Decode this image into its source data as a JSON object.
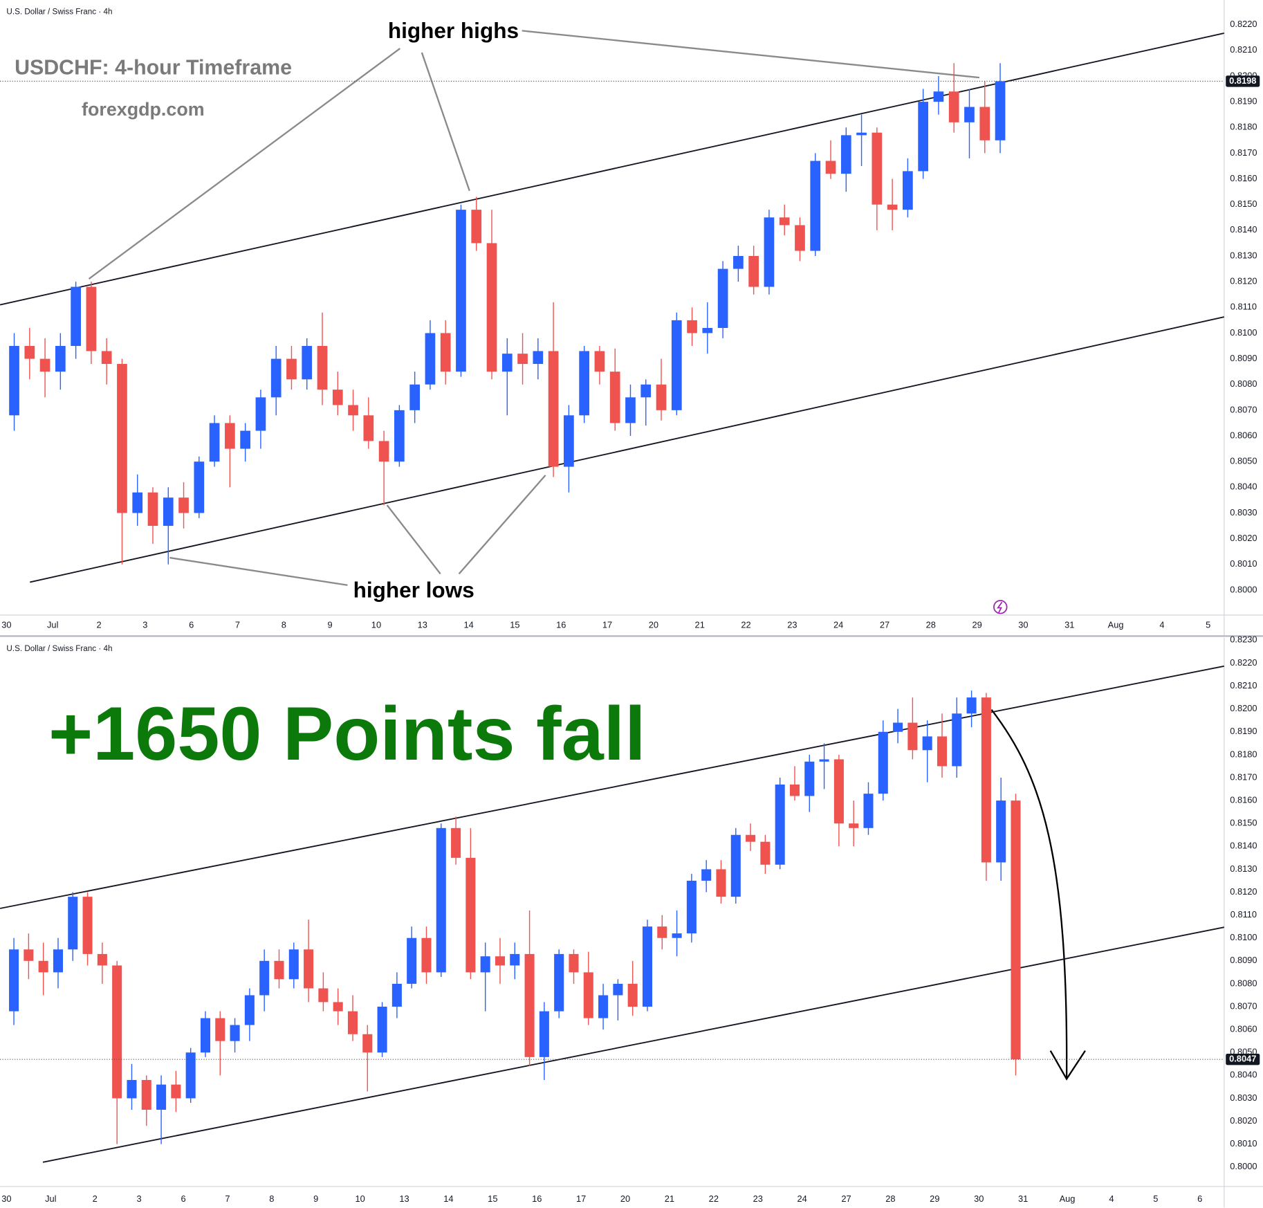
{
  "chart_data": [
    {
      "type": "candlestick",
      "title": "U.S. Dollar / Swiss Franc · 4h",
      "heading": "USDCHF: 4-hour Timeframe",
      "website": "forexgdp.com",
      "annotations": [
        "higher highs",
        "higher lows"
      ],
      "up_color": "#2962ff",
      "down_color": "#ef5350",
      "open": [
        0.8068,
        0.8095,
        0.809,
        0.8085,
        0.8095,
        0.8118,
        0.8093,
        0.8088,
        0.803,
        0.8038,
        0.8025,
        0.8036,
        0.803,
        0.805,
        0.8065,
        0.8055,
        0.8062,
        0.8075,
        0.809,
        0.8082,
        0.8095,
        0.8078,
        0.8072,
        0.8068,
        0.8058,
        0.805,
        0.807,
        0.808,
        0.81,
        0.8085,
        0.8148,
        0.8135,
        0.8085,
        0.8092,
        0.8088,
        0.8093,
        0.8048,
        0.8068,
        0.8093,
        0.8085,
        0.8065,
        0.8075,
        0.808,
        0.807,
        0.8105,
        0.81,
        0.8102,
        0.8125,
        0.813,
        0.8118,
        0.8145,
        0.8142,
        0.8132,
        0.8167,
        0.8162,
        0.8177,
        0.8178,
        0.815,
        0.8148,
        0.8163,
        0.819,
        0.8194,
        0.8182,
        0.8188,
        0.8175
      ],
      "high": [
        0.81,
        0.8102,
        0.8098,
        0.81,
        0.812,
        0.812,
        0.8098,
        0.809,
        0.8045,
        0.804,
        0.804,
        0.8042,
        0.8052,
        0.8068,
        0.8068,
        0.8065,
        0.8078,
        0.8095,
        0.8095,
        0.8098,
        0.8108,
        0.8085,
        0.8078,
        0.8075,
        0.8062,
        0.8072,
        0.8085,
        0.8105,
        0.8105,
        0.815,
        0.8153,
        0.8148,
        0.8098,
        0.81,
        0.8098,
        0.8112,
        0.8072,
        0.8095,
        0.8095,
        0.8094,
        0.808,
        0.8082,
        0.809,
        0.8108,
        0.811,
        0.8112,
        0.8128,
        0.8134,
        0.8134,
        0.8148,
        0.815,
        0.8145,
        0.817,
        0.8175,
        0.818,
        0.8185,
        0.818,
        0.816,
        0.8168,
        0.8195,
        0.82,
        0.8205,
        0.8195,
        0.8198,
        0.8205
      ],
      "low": [
        0.8062,
        0.8082,
        0.8075,
        0.8078,
        0.809,
        0.8088,
        0.808,
        0.801,
        0.8025,
        0.8018,
        0.801,
        0.8024,
        0.8028,
        0.8048,
        0.804,
        0.805,
        0.8055,
        0.8068,
        0.8078,
        0.8078,
        0.8072,
        0.8068,
        0.8062,
        0.8055,
        0.8033,
        0.8048,
        0.8065,
        0.8078,
        0.808,
        0.8083,
        0.8132,
        0.8082,
        0.8068,
        0.808,
        0.8082,
        0.8044,
        0.8038,
        0.8065,
        0.808,
        0.8062,
        0.806,
        0.8064,
        0.8066,
        0.8068,
        0.8095,
        0.8092,
        0.8098,
        0.812,
        0.8115,
        0.8115,
        0.8138,
        0.8128,
        0.813,
        0.816,
        0.8155,
        0.8165,
        0.814,
        0.814,
        0.8145,
        0.816,
        0.8185,
        0.8178,
        0.8168,
        0.817,
        0.817
      ],
      "close": [
        0.8095,
        0.809,
        0.8085,
        0.8095,
        0.8118,
        0.8093,
        0.8088,
        0.803,
        0.8038,
        0.8025,
        0.8036,
        0.803,
        0.805,
        0.8065,
        0.8055,
        0.8062,
        0.8075,
        0.809,
        0.8082,
        0.8095,
        0.8078,
        0.8072,
        0.8068,
        0.8058,
        0.805,
        0.807,
        0.808,
        0.81,
        0.8085,
        0.8148,
        0.8135,
        0.8085,
        0.8092,
        0.8088,
        0.8093,
        0.8048,
        0.8068,
        0.8093,
        0.8085,
        0.8065,
        0.8075,
        0.808,
        0.807,
        0.8105,
        0.81,
        0.8102,
        0.8125,
        0.813,
        0.8118,
        0.8145,
        0.8142,
        0.8132,
        0.8167,
        0.8162,
        0.8177,
        0.8178,
        0.815,
        0.8148,
        0.8163,
        0.819,
        0.8194,
        0.8182,
        0.8188,
        0.8175,
        0.8198
      ],
      "last_price": {
        "value": 0.8198,
        "label": "0.8198"
      },
      "trendlines": [
        {
          "x": [
            -0.42,
            79.04
          ],
          "y": [
            0.8111,
            0.82167
          ]
        },
        {
          "x": [
            1.52,
            79.04
          ],
          "y": [
            0.80031,
            0.81063
          ]
        }
      ],
      "xlim": [
        -0.42,
        79.04
      ],
      "ylim": [
        0.79906,
        0.82296
      ],
      "xticks": [
        {
          "value": 0,
          "label": "30"
        },
        {
          "value": 3,
          "label": "Jul"
        },
        {
          "value": 6,
          "label": "2"
        },
        {
          "value": 9,
          "label": "3"
        },
        {
          "value": 12,
          "label": "6"
        },
        {
          "value": 15,
          "label": "7"
        },
        {
          "value": 18,
          "label": "8"
        },
        {
          "value": 21,
          "label": "9"
        },
        {
          "value": 24,
          "label": "10"
        },
        {
          "value": 27,
          "label": "13"
        },
        {
          "value": 30,
          "label": "14"
        },
        {
          "value": 33,
          "label": "15"
        },
        {
          "value": 36,
          "label": "16"
        },
        {
          "value": 39,
          "label": "17"
        },
        {
          "value": 42,
          "label": "20"
        },
        {
          "value": 45,
          "label": "21"
        },
        {
          "value": 48,
          "label": "22"
        },
        {
          "value": 51,
          "label": "23"
        },
        {
          "value": 54,
          "label": "24"
        },
        {
          "value": 57,
          "label": "27"
        },
        {
          "value": 60,
          "label": "28"
        },
        {
          "value": 63,
          "label": "29"
        },
        {
          "value": 66,
          "label": "30"
        },
        {
          "value": 69,
          "label": "31"
        },
        {
          "value": 72,
          "label": "Aug"
        },
        {
          "value": 75,
          "label": "4"
        },
        {
          "value": 78,
          "label": "5"
        }
      ],
      "yticks": [
        {
          "value": 0.8,
          "label": "0.8000"
        },
        {
          "value": 0.801,
          "label": "0.8010"
        },
        {
          "value": 0.802,
          "label": "0.8020"
        },
        {
          "value": 0.803,
          "label": "0.8030"
        },
        {
          "value": 0.804,
          "label": "0.8040"
        },
        {
          "value": 0.805,
          "label": "0.8050"
        },
        {
          "value": 0.806,
          "label": "0.8060"
        },
        {
          "value": 0.807,
          "label": "0.8070"
        },
        {
          "value": 0.808,
          "label": "0.8080"
        },
        {
          "value": 0.809,
          "label": "0.8090"
        },
        {
          "value": 0.81,
          "label": "0.8100"
        },
        {
          "value": 0.811,
          "label": "0.8110"
        },
        {
          "value": 0.812,
          "label": "0.8120"
        },
        {
          "value": 0.813,
          "label": "0.8130"
        },
        {
          "value": 0.814,
          "label": "0.8140"
        },
        {
          "value": 0.815,
          "label": "0.8150"
        },
        {
          "value": 0.816,
          "label": "0.8160"
        },
        {
          "value": 0.817,
          "label": "0.8170"
        },
        {
          "value": 0.818,
          "label": "0.8180"
        },
        {
          "value": 0.819,
          "label": "0.8190"
        },
        {
          "value": 0.82,
          "label": "0.8200"
        },
        {
          "value": 0.821,
          "label": "0.8210"
        },
        {
          "value": 0.822,
          "label": "0.8220"
        }
      ],
      "grid": false
    },
    {
      "type": "candlestick",
      "title": "U.S. Dollar / Swiss Franc · 4h",
      "annotations": [
        "+1650 Points fall"
      ],
      "up_color": "#2962ff",
      "down_color": "#ef5350",
      "open": [
        0.8068,
        0.8095,
        0.809,
        0.8085,
        0.8095,
        0.8118,
        0.8093,
        0.8088,
        0.803,
        0.8038,
        0.8025,
        0.8036,
        0.803,
        0.805,
        0.8065,
        0.8055,
        0.8062,
        0.8075,
        0.809,
        0.8082,
        0.8095,
        0.8078,
        0.8072,
        0.8068,
        0.8058,
        0.805,
        0.807,
        0.808,
        0.81,
        0.8085,
        0.8148,
        0.8135,
        0.8085,
        0.8092,
        0.8088,
        0.8093,
        0.8048,
        0.8068,
        0.8093,
        0.8085,
        0.8065,
        0.8075,
        0.808,
        0.807,
        0.8105,
        0.81,
        0.8102,
        0.8125,
        0.813,
        0.8118,
        0.8145,
        0.8142,
        0.8132,
        0.8167,
        0.8162,
        0.8177,
        0.8178,
        0.815,
        0.8148,
        0.8163,
        0.819,
        0.8194,
        0.8182,
        0.8188,
        0.8175,
        0.8198,
        0.8205,
        0.8133,
        0.816
      ],
      "high": [
        0.81,
        0.8102,
        0.8098,
        0.81,
        0.812,
        0.812,
        0.8098,
        0.809,
        0.8045,
        0.804,
        0.804,
        0.8042,
        0.8052,
        0.8068,
        0.8068,
        0.8065,
        0.8078,
        0.8095,
        0.8095,
        0.8098,
        0.8108,
        0.8085,
        0.8078,
        0.8075,
        0.8062,
        0.8072,
        0.8085,
        0.8105,
        0.8105,
        0.815,
        0.8153,
        0.8148,
        0.8098,
        0.81,
        0.8098,
        0.8112,
        0.8072,
        0.8095,
        0.8095,
        0.8094,
        0.808,
        0.8082,
        0.809,
        0.8108,
        0.811,
        0.8112,
        0.8128,
        0.8134,
        0.8134,
        0.8148,
        0.815,
        0.8145,
        0.817,
        0.8175,
        0.818,
        0.8185,
        0.818,
        0.816,
        0.8168,
        0.8195,
        0.82,
        0.8205,
        0.8195,
        0.8198,
        0.8205,
        0.8208,
        0.8207,
        0.817,
        0.8163
      ],
      "low": [
        0.8062,
        0.8082,
        0.8075,
        0.8078,
        0.809,
        0.8088,
        0.808,
        0.801,
        0.8025,
        0.8018,
        0.801,
        0.8024,
        0.8028,
        0.8048,
        0.804,
        0.805,
        0.8055,
        0.8068,
        0.8078,
        0.8078,
        0.8072,
        0.8068,
        0.8062,
        0.8055,
        0.8033,
        0.8048,
        0.8065,
        0.8078,
        0.808,
        0.8083,
        0.8132,
        0.8082,
        0.8068,
        0.808,
        0.8082,
        0.8044,
        0.8038,
        0.8065,
        0.808,
        0.8062,
        0.806,
        0.8064,
        0.8066,
        0.8068,
        0.8095,
        0.8092,
        0.8098,
        0.812,
        0.8115,
        0.8115,
        0.8138,
        0.8128,
        0.813,
        0.816,
        0.8155,
        0.8165,
        0.814,
        0.814,
        0.8145,
        0.816,
        0.8185,
        0.8178,
        0.8168,
        0.817,
        0.817,
        0.8192,
        0.8125,
        0.8125,
        0.804
      ],
      "close": [
        0.8095,
        0.809,
        0.8085,
        0.8095,
        0.8118,
        0.8093,
        0.8088,
        0.803,
        0.8038,
        0.8025,
        0.8036,
        0.803,
        0.805,
        0.8065,
        0.8055,
        0.8062,
        0.8075,
        0.809,
        0.8082,
        0.8095,
        0.8078,
        0.8072,
        0.8068,
        0.8058,
        0.805,
        0.807,
        0.808,
        0.81,
        0.8085,
        0.8148,
        0.8135,
        0.8085,
        0.8092,
        0.8088,
        0.8093,
        0.8048,
        0.8068,
        0.8093,
        0.8085,
        0.8065,
        0.8075,
        0.808,
        0.807,
        0.8105,
        0.81,
        0.8102,
        0.8125,
        0.813,
        0.8118,
        0.8145,
        0.8142,
        0.8132,
        0.8167,
        0.8162,
        0.8177,
        0.8178,
        0.815,
        0.8148,
        0.8163,
        0.819,
        0.8194,
        0.8182,
        0.8188,
        0.8175,
        0.8198,
        0.8205,
        0.8133,
        0.816,
        0.8047
      ],
      "last_price": {
        "value": 0.8047,
        "label": "0.8047"
      },
      "trendlines": [
        {
          "x": [
            -0.44,
            82.65
          ],
          "y": [
            0.81129,
            0.82187
          ]
        },
        {
          "x": [
            2.47,
            82.65
          ],
          "y": [
            0.80021,
            0.81047
          ]
        }
      ],
      "xlim": [
        -0.44,
        82.65
      ],
      "ylim": [
        0.79922,
        0.82311
      ],
      "xticks": [
        {
          "value": 0,
          "label": "30"
        },
        {
          "value": 3,
          "label": "Jul"
        },
        {
          "value": 6,
          "label": "2"
        },
        {
          "value": 9,
          "label": "3"
        },
        {
          "value": 12,
          "label": "6"
        },
        {
          "value": 15,
          "label": "7"
        },
        {
          "value": 18,
          "label": "8"
        },
        {
          "value": 21,
          "label": "9"
        },
        {
          "value": 24,
          "label": "10"
        },
        {
          "value": 27,
          "label": "13"
        },
        {
          "value": 30,
          "label": "14"
        },
        {
          "value": 33,
          "label": "15"
        },
        {
          "value": 36,
          "label": "16"
        },
        {
          "value": 39,
          "label": "17"
        },
        {
          "value": 42,
          "label": "20"
        },
        {
          "value": 45,
          "label": "21"
        },
        {
          "value": 48,
          "label": "22"
        },
        {
          "value": 51,
          "label": "23"
        },
        {
          "value": 54,
          "label": "24"
        },
        {
          "value": 57,
          "label": "27"
        },
        {
          "value": 60,
          "label": "28"
        },
        {
          "value": 63,
          "label": "29"
        },
        {
          "value": 66,
          "label": "30"
        },
        {
          "value": 69,
          "label": "31"
        },
        {
          "value": 72,
          "label": "Aug"
        },
        {
          "value": 75,
          "label": "4"
        },
        {
          "value": 78,
          "label": "5"
        },
        {
          "value": 81,
          "label": "6"
        }
      ],
      "yticks": [
        {
          "value": 0.8,
          "label": "0.8000"
        },
        {
          "value": 0.801,
          "label": "0.8010"
        },
        {
          "value": 0.802,
          "label": "0.8020"
        },
        {
          "value": 0.803,
          "label": "0.8030"
        },
        {
          "value": 0.804,
          "label": "0.8040"
        },
        {
          "value": 0.805,
          "label": "0.8050"
        },
        {
          "value": 0.806,
          "label": "0.8060"
        },
        {
          "value": 0.807,
          "label": "0.8070"
        },
        {
          "value": 0.808,
          "label": "0.8080"
        },
        {
          "value": 0.809,
          "label": "0.8090"
        },
        {
          "value": 0.81,
          "label": "0.8100"
        },
        {
          "value": 0.811,
          "label": "0.8110"
        },
        {
          "value": 0.812,
          "label": "0.8120"
        },
        {
          "value": 0.813,
          "label": "0.8130"
        },
        {
          "value": 0.814,
          "label": "0.8140"
        },
        {
          "value": 0.815,
          "label": "0.8150"
        },
        {
          "value": 0.816,
          "label": "0.8160"
        },
        {
          "value": 0.817,
          "label": "0.8170"
        },
        {
          "value": 0.818,
          "label": "0.8180"
        },
        {
          "value": 0.819,
          "label": "0.8190"
        },
        {
          "value": 0.82,
          "label": "0.8200"
        },
        {
          "value": 0.821,
          "label": "0.8210"
        },
        {
          "value": 0.822,
          "label": "0.8220"
        },
        {
          "value": 0.823,
          "label": "0.8230"
        }
      ],
      "grid": false
    }
  ]
}
